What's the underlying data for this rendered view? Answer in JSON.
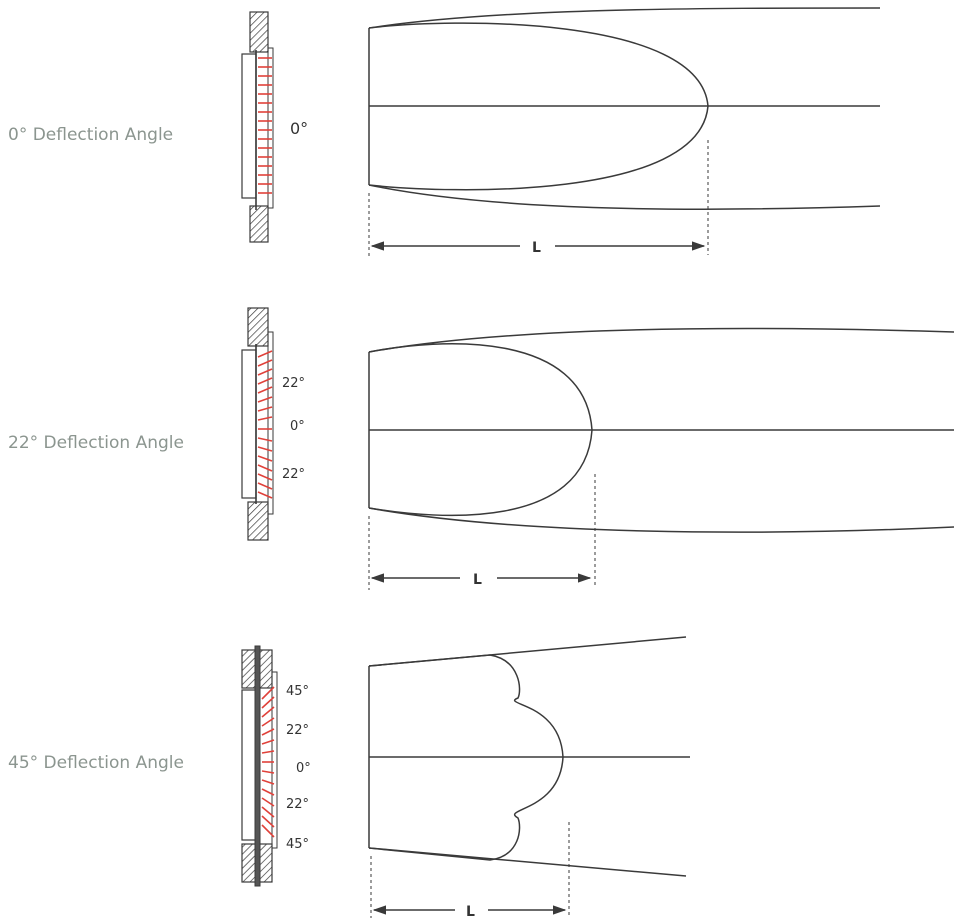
{
  "panels": [
    {
      "title": "0° Deflection Angle",
      "angle_labels": [
        "0°"
      ],
      "dimension_label": "L"
    },
    {
      "title": "22° Deflection Angle",
      "angle_labels": [
        "22°",
        "0°",
        "22°"
      ],
      "dimension_label": "L"
    },
    {
      "title": "45° Deflection Angle",
      "angle_labels": [
        "45°",
        "22°",
        "0°",
        "22°",
        "45°"
      ],
      "dimension_label": "L"
    }
  ],
  "colors": {
    "vanes": "#e0413a",
    "lines": "#3a3a3a",
    "title": "#8b958f"
  }
}
